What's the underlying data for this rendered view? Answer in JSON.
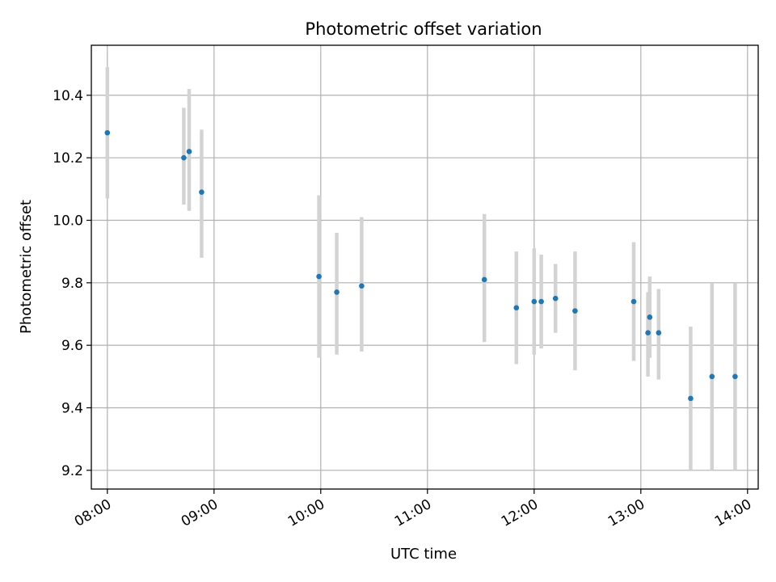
{
  "chart_data": {
    "type": "scatter",
    "title": "Photometric offset variation",
    "xlabel": "UTC time",
    "ylabel": "Photometric offset",
    "xlim": [
      "07:51",
      "14:06"
    ],
    "ylim": [
      9.14,
      10.56
    ],
    "x_ticks": [
      "08:00",
      "09:00",
      "10:00",
      "11:00",
      "12:00",
      "13:00",
      "14:00"
    ],
    "y_ticks": [
      "9.2",
      "9.4",
      "9.6",
      "9.8",
      "10.0",
      "10.2",
      "10.4"
    ],
    "grid": true,
    "colors": {
      "point": "#1f77b4",
      "errorbar": "#d3d3d3",
      "grid": "#b0b0b0"
    },
    "points": [
      {
        "t": "08:00",
        "y": 10.28,
        "lo": 10.07,
        "hi": 10.49
      },
      {
        "t": "08:43",
        "y": 10.2,
        "lo": 10.05,
        "hi": 10.36
      },
      {
        "t": "08:46",
        "y": 10.22,
        "lo": 10.03,
        "hi": 10.42
      },
      {
        "t": "08:53",
        "y": 10.09,
        "lo": 9.88,
        "hi": 10.29
      },
      {
        "t": "09:59",
        "y": 9.82,
        "lo": 9.56,
        "hi": 10.08
      },
      {
        "t": "10:09",
        "y": 9.77,
        "lo": 9.57,
        "hi": 9.96
      },
      {
        "t": "10:23",
        "y": 9.79,
        "lo": 9.58,
        "hi": 10.01
      },
      {
        "t": "11:32",
        "y": 9.81,
        "lo": 9.61,
        "hi": 10.02
      },
      {
        "t": "11:50",
        "y": 9.72,
        "lo": 9.54,
        "hi": 9.9
      },
      {
        "t": "12:00",
        "y": 9.74,
        "lo": 9.57,
        "hi": 9.91
      },
      {
        "t": "12:04",
        "y": 9.74,
        "lo": 9.59,
        "hi": 9.89
      },
      {
        "t": "12:12",
        "y": 9.75,
        "lo": 9.64,
        "hi": 9.86
      },
      {
        "t": "12:23",
        "y": 9.71,
        "lo": 9.52,
        "hi": 9.9
      },
      {
        "t": "12:56",
        "y": 9.74,
        "lo": 9.55,
        "hi": 9.93
      },
      {
        "t": "13:04",
        "y": 9.64,
        "lo": 9.5,
        "hi": 9.77
      },
      {
        "t": "13:05",
        "y": 9.69,
        "lo": 9.56,
        "hi": 9.82
      },
      {
        "t": "13:10",
        "y": 9.64,
        "lo": 9.49,
        "hi": 9.78
      },
      {
        "t": "13:28",
        "y": 9.43,
        "lo": 9.2,
        "hi": 9.66
      },
      {
        "t": "13:40",
        "y": 9.5,
        "lo": 9.2,
        "hi": 9.8
      },
      {
        "t": "13:53",
        "y": 9.5,
        "lo": 9.2,
        "hi": 9.8
      }
    ]
  }
}
